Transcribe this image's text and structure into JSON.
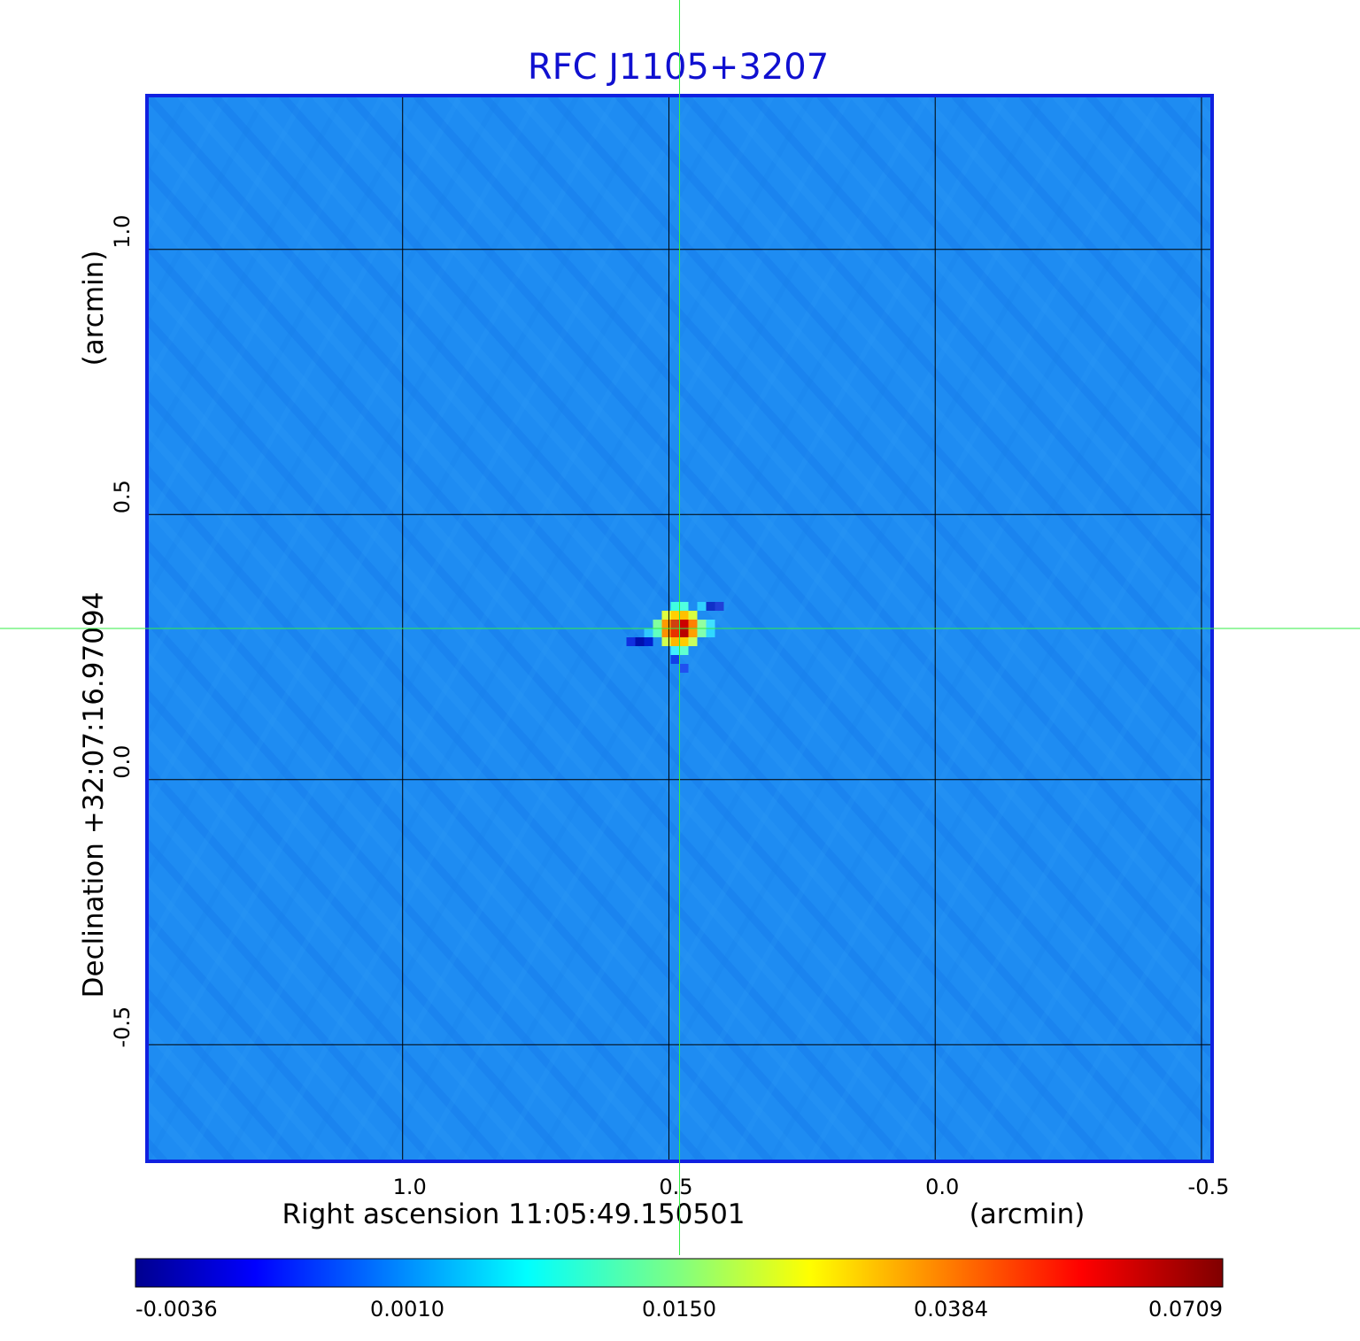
{
  "chart_data": {
    "type": "heatmap",
    "title": "RFC J1105+3207",
    "xlabel": "Right ascension  11:05:49.150501",
    "xunit": "(arcmin)",
    "ylabel": "Declination  +32:07:16.97094",
    "yunit": "(arcmin)",
    "xlim": [
      1.48,
      -0.52
    ],
    "ylim": [
      -0.72,
      1.29
    ],
    "x_ticks": [
      1.0,
      0.5,
      0.0,
      -0.5
    ],
    "x_tick_labels": [
      "1.0",
      "0.5",
      "0.0",
      "-0.5"
    ],
    "y_ticks": [
      1.0,
      0.5,
      0.0,
      -0.5
    ],
    "y_tick_labels": [
      "1.0",
      "0.5",
      "0.0",
      "-0.5"
    ],
    "grid": true,
    "crosshair": {
      "x": 0.48,
      "y": 0.285
    },
    "source_peak": {
      "x": 0.48,
      "y": 0.285,
      "value": 0.0709
    },
    "colorbar": {
      "colormap": "jet",
      "tick_labels": [
        "-0.0036",
        "0.0010",
        "0.0150",
        "0.0384",
        "0.0709"
      ],
      "tick_values": [
        -0.0036,
        0.001,
        0.015,
        0.0384,
        0.0709
      ]
    },
    "colors": {
      "title": "#1010d0",
      "frame": "#1020e0",
      "background_map": "#1e8cf2",
      "grid": "#000000",
      "crosshair": "#33ee44"
    }
  }
}
